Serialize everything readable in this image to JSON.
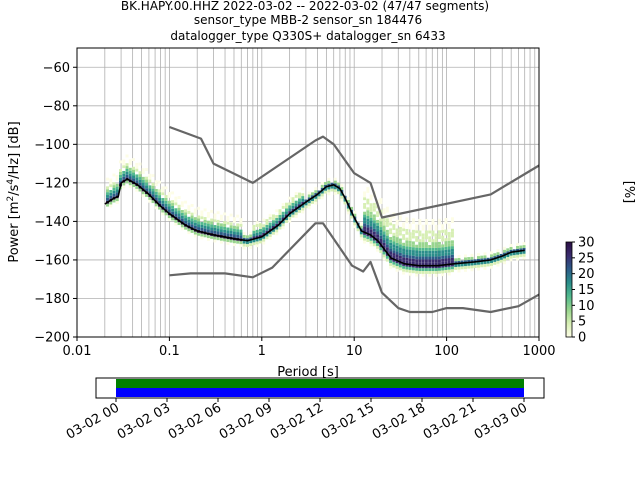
{
  "title": {
    "line1": "BK.HAPY.00.HHZ   2022-03-02 -- 2022-03-02  (47/47 segments)",
    "line2": "sensor_type MBB-2 sensor_sn 184476",
    "line3": "datalogger_type Q330S+ datalogger_sn 6433"
  },
  "chart_data": {
    "type": "heatmap",
    "xlabel": "Period [s]",
    "ylabel": "Power [m²/s⁴/Hz] [dB]",
    "xscale": "log",
    "xlim": [
      0.01,
      1000
    ],
    "ylim": [
      -200,
      -50
    ],
    "xticks": [
      {
        "value": 0.01,
        "label": "0.01"
      },
      {
        "value": 0.1,
        "label": "0.1"
      },
      {
        "value": 1,
        "label": "1"
      },
      {
        "value": 10,
        "label": "10"
      },
      {
        "value": 100,
        "label": "100"
      },
      {
        "value": 1000,
        "label": "1000"
      }
    ],
    "yticks": [
      -60,
      -80,
      -100,
      -120,
      -140,
      -160,
      -180,
      -200
    ],
    "grid": true,
    "series": [
      {
        "role": "noise-model-high",
        "color": "#666666",
        "points": [
          [
            0.1,
            -91
          ],
          [
            0.22,
            -97
          ],
          [
            0.3,
            -110
          ],
          [
            0.8,
            -120
          ],
          [
            3.8,
            -98
          ],
          [
            4.6,
            -96
          ],
          [
            6.0,
            -100
          ],
          [
            10,
            -115
          ],
          [
            15,
            -120
          ],
          [
            20,
            -138
          ],
          [
            300,
            -126
          ],
          [
            1000,
            -111
          ]
        ]
      },
      {
        "role": "noise-model-low",
        "color": "#666666",
        "points": [
          [
            0.1,
            -168
          ],
          [
            0.17,
            -167
          ],
          [
            0.4,
            -167
          ],
          [
            0.8,
            -169
          ],
          [
            1.3,
            -164
          ],
          [
            3.8,
            -141
          ],
          [
            4.6,
            -141
          ],
          [
            9.5,
            -163
          ],
          [
            12.5,
            -166
          ],
          [
            15,
            -161
          ],
          [
            20,
            -177
          ],
          [
            30,
            -185
          ],
          [
            40,
            -187
          ],
          [
            70,
            -187
          ],
          [
            100,
            -185
          ],
          [
            150,
            -185
          ],
          [
            300,
            -187
          ],
          [
            600,
            -184
          ],
          [
            1000,
            -178
          ]
        ]
      },
      {
        "role": "mode",
        "color": "#000000",
        "points": [
          [
            0.02,
            -131
          ],
          [
            0.025,
            -128
          ],
          [
            0.028,
            -127
          ],
          [
            0.03,
            -120
          ],
          [
            0.035,
            -118
          ],
          [
            0.045,
            -121
          ],
          [
            0.06,
            -126
          ],
          [
            0.08,
            -132
          ],
          [
            0.1,
            -136
          ],
          [
            0.15,
            -142
          ],
          [
            0.2,
            -145
          ],
          [
            0.3,
            -147
          ],
          [
            0.5,
            -149
          ],
          [
            0.7,
            -150
          ],
          [
            1.0,
            -148
          ],
          [
            1.5,
            -142
          ],
          [
            2.0,
            -136
          ],
          [
            3.0,
            -130
          ],
          [
            4.0,
            -126
          ],
          [
            5.0,
            -122
          ],
          [
            6.0,
            -121
          ],
          [
            7.0,
            -123
          ],
          [
            8.0,
            -128
          ],
          [
            10,
            -138
          ],
          [
            12,
            -145
          ],
          [
            15,
            -147
          ],
          [
            18,
            -150
          ],
          [
            25,
            -159
          ],
          [
            35,
            -162
          ],
          [
            50,
            -163
          ],
          [
            80,
            -163
          ],
          [
            120,
            -162
          ],
          [
            200,
            -161
          ],
          [
            300,
            -160
          ],
          [
            400,
            -158
          ],
          [
            500,
            -156
          ],
          [
            700,
            -155
          ]
        ]
      }
    ],
    "colorbar": {
      "label": "[%]",
      "ticks": [
        0,
        5,
        10,
        15,
        20,
        25,
        30
      ],
      "range": [
        0,
        30
      ],
      "colormap": [
        "#fdfde6",
        "#d7efb4",
        "#98d58e",
        "#52b98e",
        "#2a8e8a",
        "#2d5c88",
        "#3a2c6e",
        "#2b0f44"
      ]
    },
    "timeline": {
      "tick_labels": [
        "03-02 00",
        "03-02 03",
        "03-02 06",
        "03-02 09",
        "03-02 12",
        "03-02 15",
        "03-02 18",
        "03-02 21",
        "03-03 00"
      ],
      "coverage_colors": [
        "#008000",
        "#0000ff"
      ],
      "coverage": [
        1.0,
        1.0
      ]
    }
  }
}
